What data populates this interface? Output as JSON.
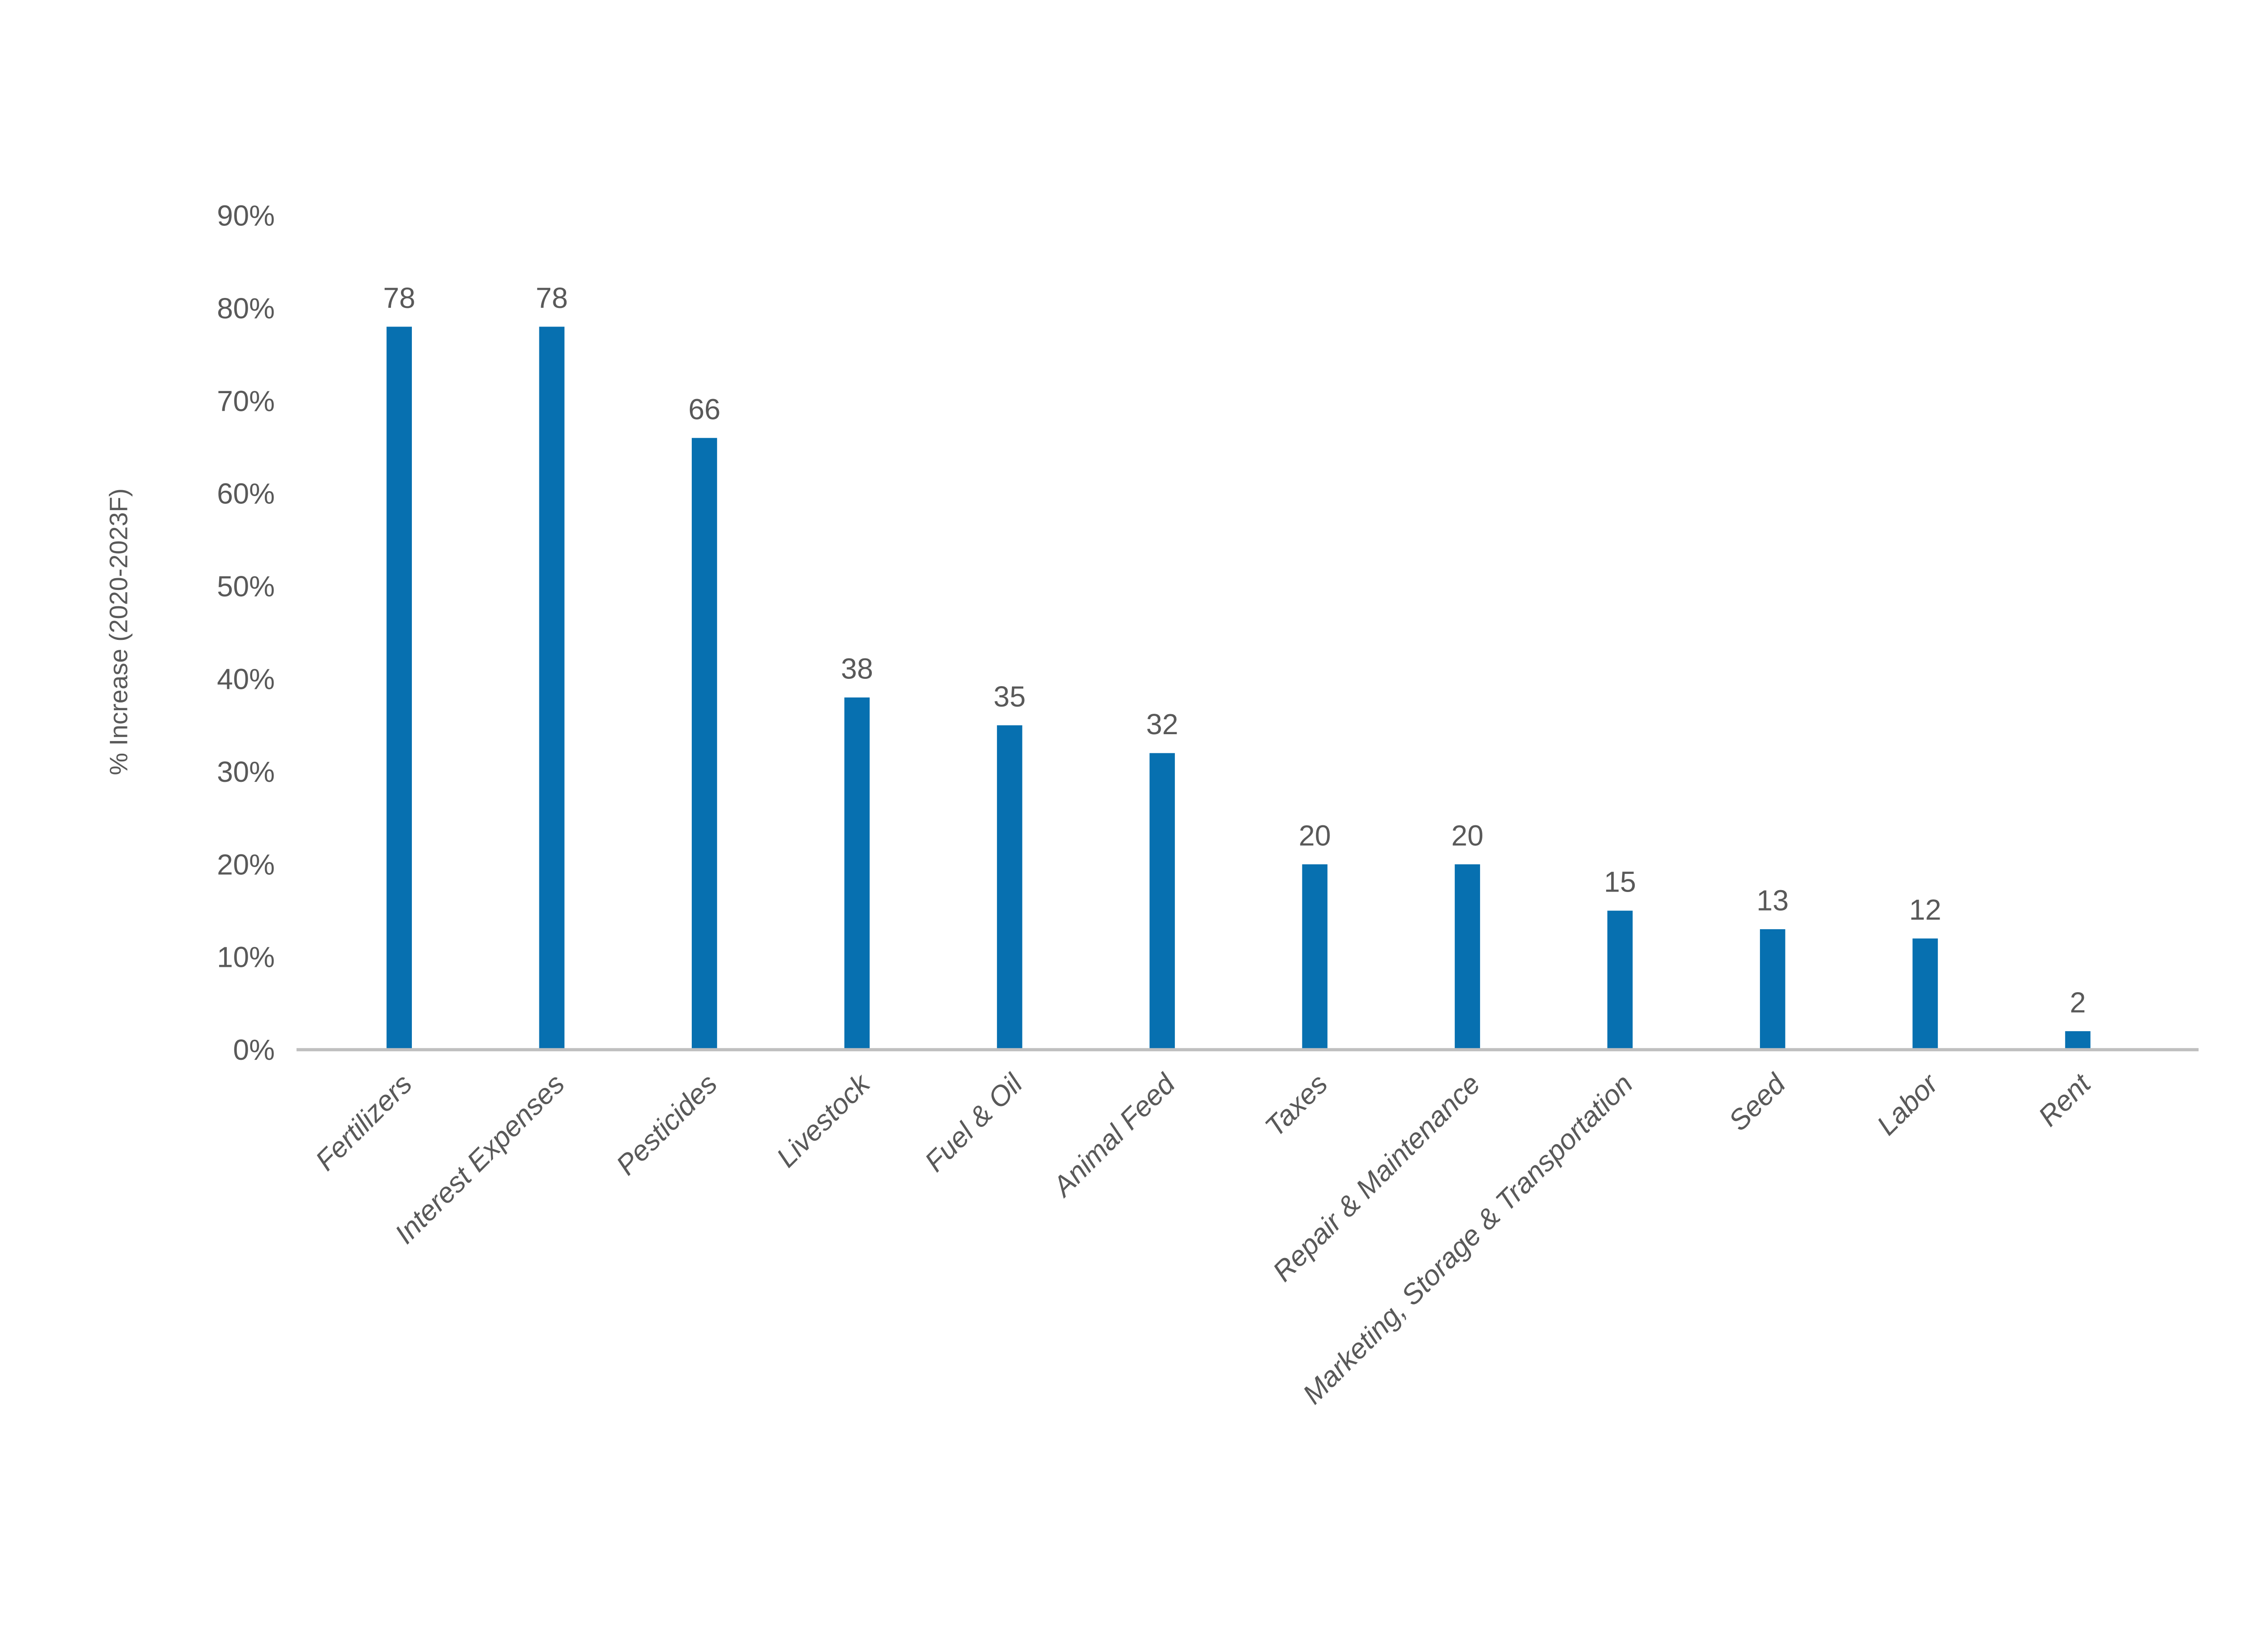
{
  "chart_data": {
    "type": "bar",
    "title": "",
    "categories": [
      "Fertilizers",
      "Interest Expenses",
      "Pesticides",
      "Livestock",
      "Fuel & Oil",
      "Animal Feed",
      "Taxes",
      "Repair & Maintenance",
      "Marketing, Storage & Transportation",
      "Seed",
      "Labor",
      "Rent"
    ],
    "values": [
      78,
      78,
      66,
      38,
      35,
      32,
      20,
      20,
      15,
      13,
      12,
      2
    ],
    "data_labels": [
      "78",
      "78",
      "66",
      "38",
      "35",
      "32",
      "20",
      "20",
      "15",
      "13",
      "12",
      "2"
    ],
    "xlabel": "",
    "ylabel": "% Increase (2020-2023F)",
    "ylim": [
      0,
      90
    ],
    "ytick_step": 10,
    "ytick_labels": [
      "0%",
      "10%",
      "20%",
      "30%",
      "40%",
      "50%",
      "60%",
      "70%",
      "80%",
      "90%"
    ],
    "grid": false,
    "legend_position": "none",
    "bar_color": "#0770B0",
    "axis_line_color": "#BFBFBF",
    "text_color": "#595959"
  }
}
